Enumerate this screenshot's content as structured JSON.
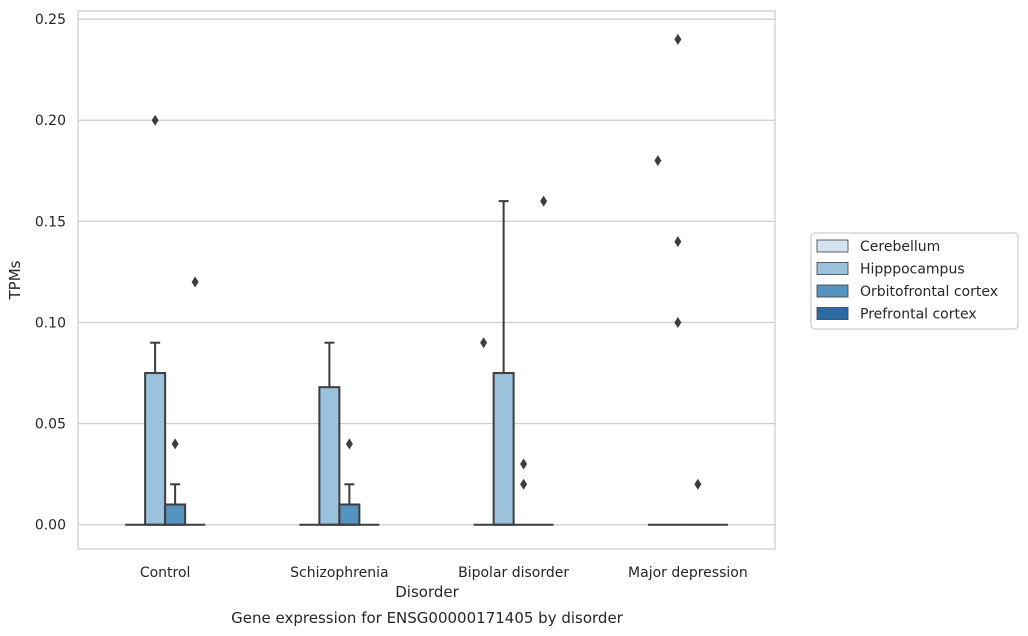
{
  "chart_data": {
    "type": "box",
    "categories": [
      "Control",
      "Schizophrenia",
      "Bipolar disorder",
      "Major depression"
    ],
    "xlabel": "Disorder",
    "ylabel": "TPMs",
    "caption": "Gene expression for ENSG00000171405 by disorder",
    "ylim": [
      -0.012,
      0.254
    ],
    "yticks": [
      0.0,
      0.05,
      0.1,
      0.15,
      0.2,
      0.25
    ],
    "ytick_labels": [
      "0.00",
      "0.05",
      "0.10",
      "0.15",
      "0.20",
      "0.25"
    ],
    "grid": "horizontal",
    "legend_position": "right",
    "series": [
      {
        "name": "Cerebellum",
        "color": "#d6e3f0",
        "boxes": [
          {
            "q1": 0,
            "median": 0,
            "q3": 0,
            "whisker_low": 0,
            "whisker_high": 0,
            "outliers": []
          },
          {
            "q1": 0,
            "median": 0,
            "q3": 0,
            "whisker_low": 0,
            "whisker_high": 0,
            "outliers": []
          },
          {
            "q1": 0,
            "median": 0,
            "q3": 0,
            "whisker_low": 0,
            "whisker_high": 0,
            "outliers": [
              0.09
            ]
          },
          {
            "q1": 0,
            "median": 0,
            "q3": 0,
            "whisker_low": 0,
            "whisker_high": 0,
            "outliers": [
              0.18
            ]
          }
        ]
      },
      {
        "name": "Hipppocampus",
        "color": "#9ac2dc",
        "boxes": [
          {
            "q1": 0,
            "median": 0,
            "q3": 0.075,
            "whisker_low": 0,
            "whisker_high": 0.09,
            "outliers": [
              0.2
            ]
          },
          {
            "q1": 0,
            "median": 0,
            "q3": 0.068,
            "whisker_low": 0,
            "whisker_high": 0.09,
            "outliers": []
          },
          {
            "q1": 0,
            "median": 0,
            "q3": 0.075,
            "whisker_low": 0,
            "whisker_high": 0.16,
            "outliers": []
          },
          {
            "q1": 0,
            "median": 0,
            "q3": 0,
            "whisker_low": 0,
            "whisker_high": 0,
            "outliers": [
              0.24,
              0.14,
              0.1
            ]
          }
        ]
      },
      {
        "name": "Orbitofrontal cortex",
        "color": "#5593c0",
        "boxes": [
          {
            "q1": 0,
            "median": 0,
            "q3": 0.01,
            "whisker_low": 0,
            "whisker_high": 0.02,
            "outliers": [
              0.04
            ]
          },
          {
            "q1": 0,
            "median": 0,
            "q3": 0.01,
            "whisker_low": 0,
            "whisker_high": 0.02,
            "outliers": [
              0.04
            ]
          },
          {
            "q1": 0,
            "median": 0,
            "q3": 0,
            "whisker_low": 0,
            "whisker_high": 0,
            "outliers": [
              0.03,
              0.02
            ]
          },
          {
            "q1": 0,
            "median": 0,
            "q3": 0,
            "whisker_low": 0,
            "whisker_high": 0,
            "outliers": [
              0.02
            ]
          }
        ]
      },
      {
        "name": "Prefrontal cortex",
        "color": "#2c6aa4",
        "boxes": [
          {
            "q1": 0,
            "median": 0,
            "q3": 0,
            "whisker_low": 0,
            "whisker_high": 0,
            "outliers": [
              0.12
            ]
          },
          {
            "q1": 0,
            "median": 0,
            "q3": 0,
            "whisker_low": 0,
            "whisker_high": 0,
            "outliers": []
          },
          {
            "q1": 0,
            "median": 0,
            "q3": 0,
            "whisker_low": 0,
            "whisker_high": 0,
            "outliers": [
              0.16
            ]
          },
          {
            "q1": 0,
            "median": 0,
            "q3": 0,
            "whisker_low": 0,
            "whisker_high": 0,
            "outliers": []
          }
        ]
      }
    ]
  }
}
